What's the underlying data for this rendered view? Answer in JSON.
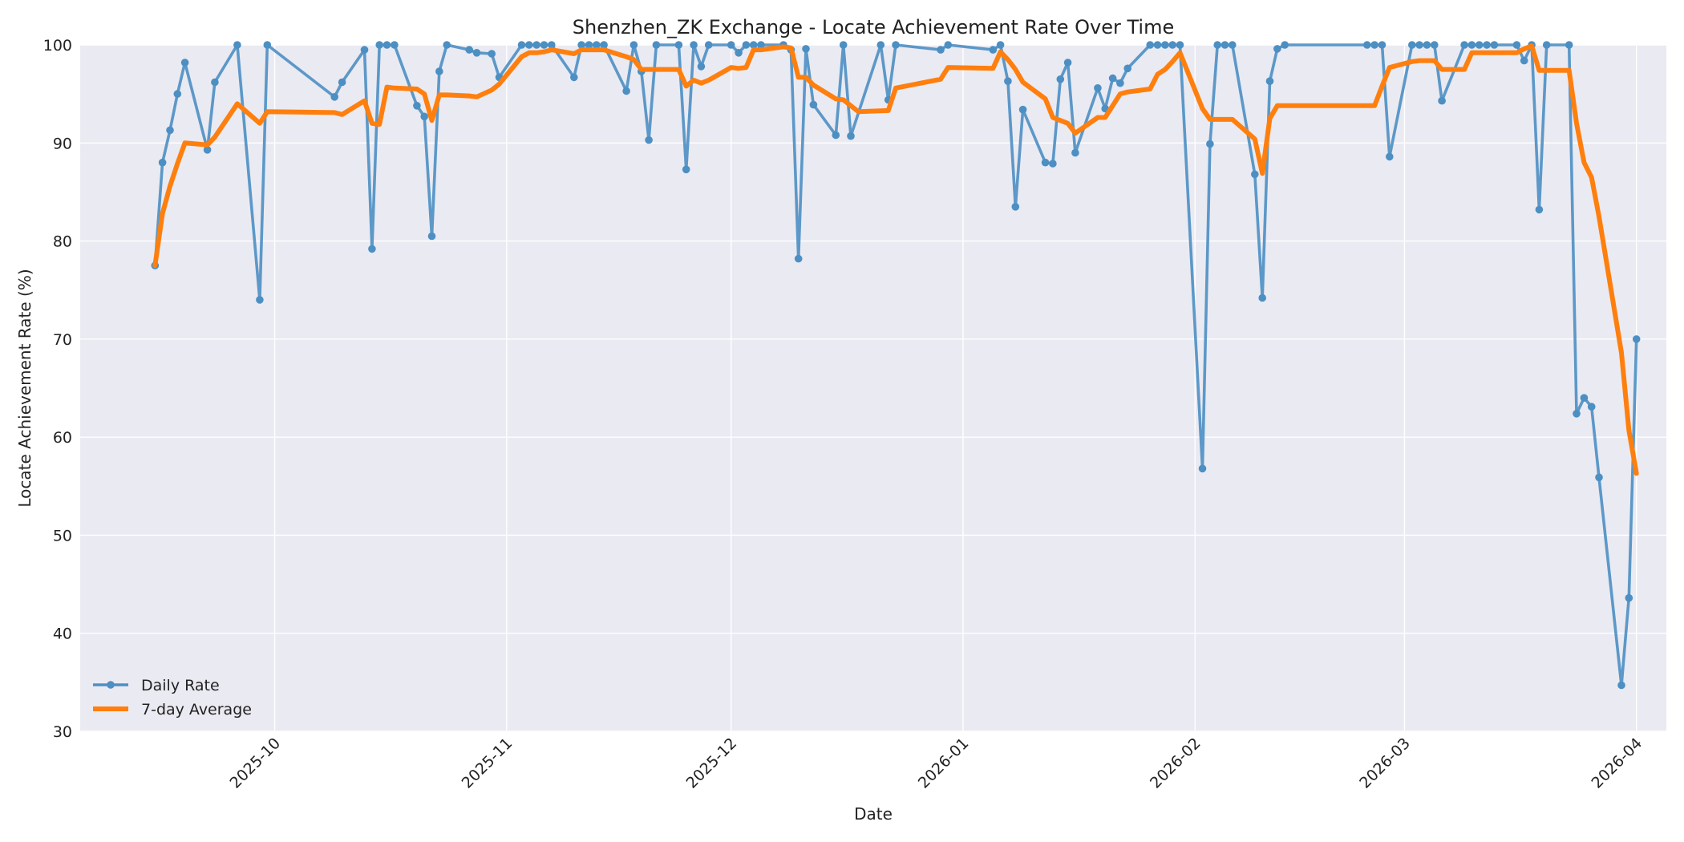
{
  "chart_data": {
    "type": "line",
    "title": "Shenzhen_ZK Exchange - Locate Achievement Rate Over Time",
    "xlabel": "Date",
    "ylabel": "Locate Achievement Rate (%)",
    "xlim": [
      "2025-09-05",
      "2026-04-05"
    ],
    "ylim": [
      30,
      100
    ],
    "yticks": [
      30,
      40,
      50,
      60,
      70,
      80,
      90,
      100
    ],
    "xticks": [
      {
        "date": "2025-10-01",
        "label": "2025-10"
      },
      {
        "date": "2025-11-01",
        "label": "2025-11"
      },
      {
        "date": "2025-12-01",
        "label": "2025-12"
      },
      {
        "date": "2026-01-01",
        "label": "2026-01"
      },
      {
        "date": "2026-02-01",
        "label": "2026-02"
      },
      {
        "date": "2026-03-01",
        "label": "2026-03"
      },
      {
        "date": "2026-04-01",
        "label": "2026-04"
      }
    ],
    "grid": true,
    "legend_position": "lower-left",
    "colors": {
      "daily": "#4c8fc3",
      "avg": "#ff7f0e",
      "plot_bg": "#eaeaf2",
      "grid": "#ffffff"
    },
    "series": [
      {
        "name": "Daily Rate",
        "style": "line-marker",
        "points": [
          [
            "2025-09-15",
            77.5
          ],
          [
            "2025-09-16",
            88
          ],
          [
            "2025-09-17",
            91.3
          ],
          [
            "2025-09-18",
            95
          ],
          [
            "2025-09-19",
            98.2
          ],
          [
            "2025-09-22",
            89.3
          ],
          [
            "2025-09-23",
            96.2
          ],
          [
            "2025-09-26",
            100
          ],
          [
            "2025-09-29",
            74
          ],
          [
            "2025-09-30",
            100
          ],
          [
            "2025-10-09",
            94.7
          ],
          [
            "2025-10-10",
            96.2
          ],
          [
            "2025-10-13",
            99.5
          ],
          [
            "2025-10-14",
            79.2
          ],
          [
            "2025-10-15",
            100
          ],
          [
            "2025-10-16",
            100
          ],
          [
            "2025-10-17",
            100
          ],
          [
            "2025-10-20",
            93.8
          ],
          [
            "2025-10-21",
            92.7
          ],
          [
            "2025-10-22",
            80.5
          ],
          [
            "2025-10-23",
            97.3
          ],
          [
            "2025-10-24",
            100
          ],
          [
            "2025-10-27",
            99.5
          ],
          [
            "2025-10-28",
            99.2
          ],
          [
            "2025-10-30",
            99.1
          ],
          [
            "2025-10-31",
            96.7
          ],
          [
            "2025-11-03",
            100
          ],
          [
            "2025-11-04",
            100
          ],
          [
            "2025-11-05",
            100
          ],
          [
            "2025-11-06",
            100
          ],
          [
            "2025-11-07",
            100
          ],
          [
            "2025-11-10",
            96.7
          ],
          [
            "2025-11-11",
            100
          ],
          [
            "2025-11-12",
            100
          ],
          [
            "2025-11-13",
            100
          ],
          [
            "2025-11-14",
            100
          ],
          [
            "2025-11-17",
            95.3
          ],
          [
            "2025-11-18",
            100
          ],
          [
            "2025-11-19",
            97.3
          ],
          [
            "2025-11-20",
            90.3
          ],
          [
            "2025-11-21",
            100
          ],
          [
            "2025-11-24",
            100
          ],
          [
            "2025-11-25",
            87.3
          ],
          [
            "2025-11-26",
            100
          ],
          [
            "2025-11-27",
            97.8
          ],
          [
            "2025-11-28",
            100
          ],
          [
            "2025-12-01",
            100
          ],
          [
            "2025-12-02",
            99.2
          ],
          [
            "2025-12-03",
            100
          ],
          [
            "2025-12-04",
            100
          ],
          [
            "2025-12-05",
            100
          ],
          [
            "2025-12-08",
            100
          ],
          [
            "2025-12-09",
            99.5
          ],
          [
            "2025-12-10",
            78.2
          ],
          [
            "2025-12-11",
            99.6
          ],
          [
            "2025-12-12",
            93.9
          ],
          [
            "2025-12-15",
            90.8
          ],
          [
            "2025-12-16",
            100
          ],
          [
            "2025-12-17",
            90.7
          ],
          [
            "2025-12-21",
            100
          ],
          [
            "2025-12-22",
            94.4
          ],
          [
            "2025-12-23",
            100
          ],
          [
            "2025-12-29",
            99.5
          ],
          [
            "2025-12-30",
            100
          ],
          [
            "2026-01-05",
            99.5
          ],
          [
            "2026-01-06",
            100
          ],
          [
            "2026-01-07",
            96.3
          ],
          [
            "2026-01-08",
            83.5
          ],
          [
            "2026-01-09",
            93.4
          ],
          [
            "2026-01-12",
            88
          ],
          [
            "2026-01-13",
            87.9
          ],
          [
            "2026-01-14",
            96.5
          ],
          [
            "2026-01-15",
            98.2
          ],
          [
            "2026-01-16",
            89
          ],
          [
            "2026-01-19",
            95.6
          ],
          [
            "2026-01-20",
            93.5
          ],
          [
            "2026-01-21",
            96.6
          ],
          [
            "2026-01-22",
            96.1
          ],
          [
            "2026-01-23",
            97.6
          ],
          [
            "2026-01-26",
            100
          ],
          [
            "2026-01-27",
            100
          ],
          [
            "2026-01-28",
            100
          ],
          [
            "2026-01-29",
            100
          ],
          [
            "2026-01-30",
            100
          ],
          [
            "2026-02-02",
            56.8
          ],
          [
            "2026-02-03",
            89.9
          ],
          [
            "2026-02-04",
            100
          ],
          [
            "2026-02-05",
            100
          ],
          [
            "2026-02-06",
            100
          ],
          [
            "2026-02-09",
            86.8
          ],
          [
            "2026-02-10",
            74.2
          ],
          [
            "2026-02-11",
            96.3
          ],
          [
            "2026-02-12",
            99.6
          ],
          [
            "2026-02-13",
            100
          ],
          [
            "2026-02-24",
            100
          ],
          [
            "2026-02-25",
            100
          ],
          [
            "2026-02-26",
            100
          ],
          [
            "2026-02-27",
            88.6
          ],
          [
            "2026-03-02",
            100
          ],
          [
            "2026-03-03",
            100
          ],
          [
            "2026-03-04",
            100
          ],
          [
            "2026-03-05",
            100
          ],
          [
            "2026-03-06",
            94.3
          ],
          [
            "2026-03-09",
            100
          ],
          [
            "2026-03-10",
            100
          ],
          [
            "2026-03-11",
            100
          ],
          [
            "2026-03-12",
            100
          ],
          [
            "2026-03-13",
            100
          ],
          [
            "2026-03-16",
            100
          ],
          [
            "2026-03-17",
            98.4
          ],
          [
            "2026-03-18",
            100
          ],
          [
            "2026-03-19",
            83.2
          ],
          [
            "2026-03-20",
            100
          ],
          [
            "2026-03-23",
            100
          ],
          [
            "2026-03-24",
            62.4
          ],
          [
            "2026-03-25",
            64
          ],
          [
            "2026-03-26",
            63.1
          ],
          [
            "2026-03-27",
            55.9
          ],
          [
            "2026-03-30",
            34.7
          ],
          [
            "2026-03-31",
            43.6
          ],
          [
            "2026-04-01",
            70
          ]
        ]
      },
      {
        "name": "7-day Average",
        "style": "line",
        "points": [
          [
            "2025-09-15",
            77.5
          ],
          [
            "2025-09-16",
            82.8
          ],
          [
            "2025-09-17",
            85.6
          ],
          [
            "2025-09-18",
            87.9
          ],
          [
            "2025-09-19",
            90
          ],
          [
            "2025-09-22",
            89.8
          ],
          [
            "2025-09-23",
            90.6
          ],
          [
            "2025-09-26",
            94
          ],
          [
            "2025-09-29",
            92
          ],
          [
            "2025-09-30",
            93.2
          ],
          [
            "2025-10-09",
            93.1
          ],
          [
            "2025-10-10",
            92.9
          ],
          [
            "2025-10-13",
            94.3
          ],
          [
            "2025-10-14",
            92
          ],
          [
            "2025-10-15",
            91.9
          ],
          [
            "2025-10-16",
            95.7
          ],
          [
            "2025-10-17",
            95.6
          ],
          [
            "2025-10-20",
            95.5
          ],
          [
            "2025-10-21",
            95
          ],
          [
            "2025-10-22",
            92.3
          ],
          [
            "2025-10-23",
            94.9
          ],
          [
            "2025-10-24",
            94.9
          ],
          [
            "2025-10-27",
            94.8
          ],
          [
            "2025-10-28",
            94.7
          ],
          [
            "2025-10-30",
            95.4
          ],
          [
            "2025-10-31",
            96
          ],
          [
            "2025-11-03",
            98.8
          ],
          [
            "2025-11-04",
            99.2
          ],
          [
            "2025-11-05",
            99.2
          ],
          [
            "2025-11-06",
            99.3
          ],
          [
            "2025-11-07",
            99.5
          ],
          [
            "2025-11-10",
            99.1
          ],
          [
            "2025-11-11",
            99.5
          ],
          [
            "2025-11-12",
            99.5
          ],
          [
            "2025-11-13",
            99.5
          ],
          [
            "2025-11-14",
            99.5
          ],
          [
            "2025-11-17",
            98.8
          ],
          [
            "2025-11-18",
            98.5
          ],
          [
            "2025-11-19",
            97.5
          ],
          [
            "2025-11-20",
            97.5
          ],
          [
            "2025-11-21",
            97.5
          ],
          [
            "2025-11-24",
            97.5
          ],
          [
            "2025-11-25",
            95.8
          ],
          [
            "2025-11-26",
            96.4
          ],
          [
            "2025-11-27",
            96.1
          ],
          [
            "2025-11-28",
            96.4
          ],
          [
            "2025-12-01",
            97.7
          ],
          [
            "2025-12-02",
            97.6
          ],
          [
            "2025-12-03",
            97.7
          ],
          [
            "2025-12-04",
            99.5
          ],
          [
            "2025-12-05",
            99.5
          ],
          [
            "2025-12-08",
            99.8
          ],
          [
            "2025-12-09",
            99.7
          ],
          [
            "2025-12-10",
            96.7
          ],
          [
            "2025-12-11",
            96.7
          ],
          [
            "2025-12-12",
            95.9
          ],
          [
            "2025-12-15",
            94.5
          ],
          [
            "2025-12-16",
            94.4
          ],
          [
            "2025-12-17",
            93.8
          ],
          [
            "2025-12-18",
            93.2
          ],
          [
            "2025-12-22",
            93.3
          ],
          [
            "2025-12-23",
            95.6
          ],
          [
            "2025-12-29",
            96.5
          ],
          [
            "2025-12-30",
            97.7
          ],
          [
            "2026-01-05",
            97.6
          ],
          [
            "2026-01-06",
            99.3
          ],
          [
            "2026-01-07",
            98.5
          ],
          [
            "2026-01-08",
            97.5
          ],
          [
            "2026-01-09",
            96.2
          ],
          [
            "2026-01-12",
            94.5
          ],
          [
            "2026-01-13",
            92.6
          ],
          [
            "2026-01-14",
            92.3
          ],
          [
            "2026-01-15",
            92
          ],
          [
            "2026-01-16",
            91
          ],
          [
            "2026-01-19",
            92.6
          ],
          [
            "2026-01-20",
            92.6
          ],
          [
            "2026-01-21",
            93.8
          ],
          [
            "2026-01-22",
            95
          ],
          [
            "2026-01-23",
            95.2
          ],
          [
            "2026-01-26",
            95.5
          ],
          [
            "2026-01-27",
            97
          ],
          [
            "2026-01-28",
            97.5
          ],
          [
            "2026-01-29",
            98.3
          ],
          [
            "2026-01-30",
            99.2
          ],
          [
            "2026-02-02",
            93.5
          ],
          [
            "2026-02-03",
            92.4
          ],
          [
            "2026-02-04",
            92.4
          ],
          [
            "2026-02-06",
            92.4
          ],
          [
            "2026-02-09",
            90.4
          ],
          [
            "2026-02-10",
            86.9
          ],
          [
            "2026-02-11",
            92.5
          ],
          [
            "2026-02-12",
            93.8
          ],
          [
            "2026-02-13",
            93.8
          ],
          [
            "2026-02-24",
            93.8
          ],
          [
            "2026-02-25",
            93.8
          ],
          [
            "2026-02-26",
            95.8
          ],
          [
            "2026-02-27",
            97.7
          ],
          [
            "2026-03-02",
            98.3
          ],
          [
            "2026-03-03",
            98.4
          ],
          [
            "2026-03-04",
            98.4
          ],
          [
            "2026-03-05",
            98.4
          ],
          [
            "2026-03-06",
            97.5
          ],
          [
            "2026-03-09",
            97.5
          ],
          [
            "2026-03-10",
            99.2
          ],
          [
            "2026-03-11",
            99.2
          ],
          [
            "2026-03-12",
            99.2
          ],
          [
            "2026-03-13",
            99.2
          ],
          [
            "2026-03-16",
            99.2
          ],
          [
            "2026-03-17",
            99.6
          ],
          [
            "2026-03-18",
            99.9
          ],
          [
            "2026-03-19",
            97.4
          ],
          [
            "2026-03-20",
            97.4
          ],
          [
            "2026-03-23",
            97.4
          ],
          [
            "2026-03-24",
            92
          ],
          [
            "2026-03-25",
            88
          ],
          [
            "2026-03-26",
            86.5
          ],
          [
            "2026-03-27",
            82.5
          ],
          [
            "2026-03-30",
            68.6
          ],
          [
            "2026-03-31",
            60.7
          ],
          [
            "2026-04-01",
            56.3
          ]
        ]
      }
    ]
  }
}
